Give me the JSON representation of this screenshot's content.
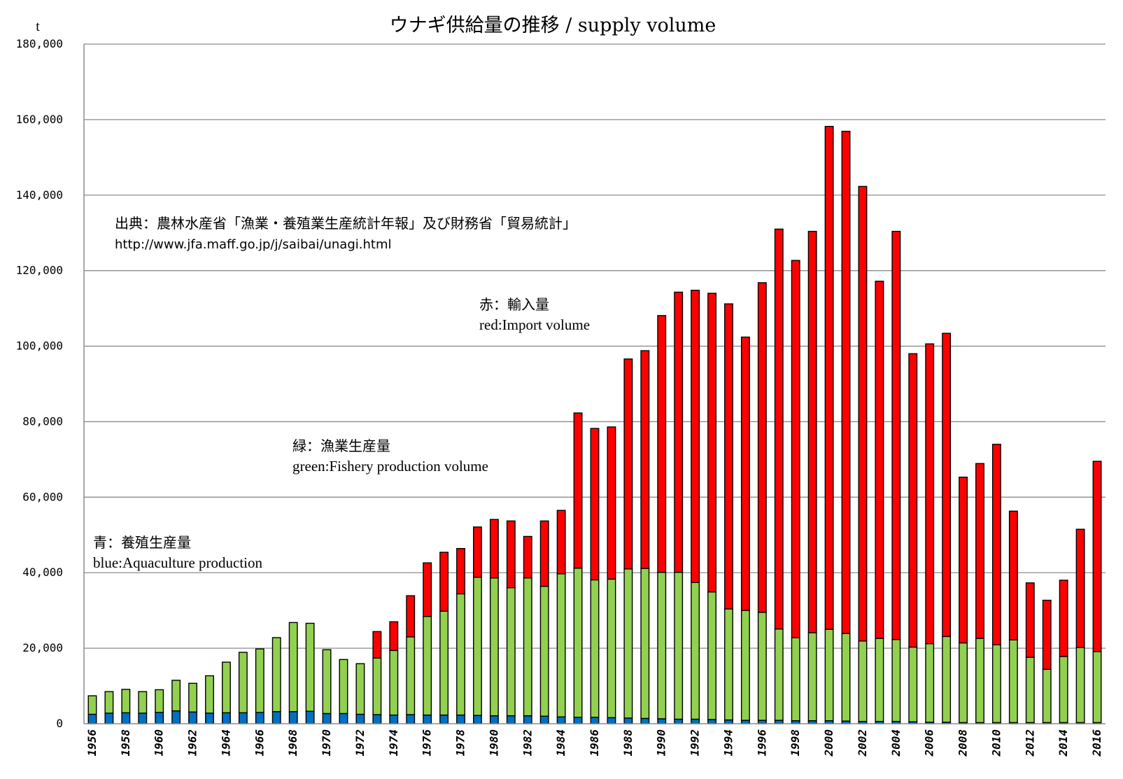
{
  "chart_data": {
    "type": "bar",
    "stacked": true,
    "title": "ウナギ供給量の推移 / supply volume",
    "ylabel": "t",
    "ylim": [
      0,
      180000
    ],
    "yticks": [
      0,
      20000,
      40000,
      60000,
      80000,
      100000,
      120000,
      140000,
      160000,
      180000
    ],
    "ytick_labels": [
      "0",
      "20,000",
      "40,000",
      "60,000",
      "80,000",
      "100,000",
      "120,000",
      "140,000",
      "160,000",
      "180,000"
    ],
    "grid": true,
    "categories": [
      "1956",
      "1957",
      "1958",
      "1959",
      "1960",
      "1961",
      "1962",
      "1963",
      "1964",
      "1965",
      "1966",
      "1967",
      "1968",
      "1969",
      "1970",
      "1971",
      "1972",
      "1973",
      "1974",
      "1975",
      "1976",
      "1977",
      "1978",
      "1979",
      "1980",
      "1981",
      "1982",
      "1983",
      "1984",
      "1985",
      "1986",
      "1987",
      "1988",
      "1989",
      "1990",
      "1991",
      "1992",
      "1993",
      "1994",
      "1995",
      "1996",
      "1997",
      "1998",
      "1999",
      "2000",
      "2001",
      "2002",
      "2003",
      "2004",
      "2005",
      "2006",
      "2007",
      "2008",
      "2009",
      "2010",
      "2011",
      "2012",
      "2013",
      "2014",
      "2015",
      "2016"
    ],
    "xtick_labels": [
      "1956",
      "1958",
      "1960",
      "1962",
      "1964",
      "1966",
      "1968",
      "1970",
      "1972",
      "1974",
      "1976",
      "1978",
      "1980",
      "1982",
      "1984",
      "1986",
      "1988",
      "1990",
      "1992",
      "1994",
      "1996",
      "1998",
      "2000",
      "2002",
      "2004",
      "2006",
      "2008",
      "2010",
      "2012",
      "2014",
      "2016"
    ],
    "series": [
      {
        "color": "#0070C0",
        "values": [
          2500,
          2800,
          2900,
          2800,
          3000,
          3400,
          3100,
          2800,
          2900,
          2900,
          3000,
          3200,
          3200,
          3300,
          2700,
          2700,
          2500,
          2400,
          2300,
          2400,
          2300,
          2300,
          2300,
          2200,
          2100,
          2100,
          2100,
          2000,
          1800,
          1700,
          1700,
          1600,
          1500,
          1400,
          1300,
          1200,
          1200,
          1100,
          1000,
          900,
          900,
          900,
          800,
          800,
          800,
          700,
          600,
          600,
          600,
          500,
          400,
          400,
          300,
          300,
          300,
          300,
          300,
          300,
          300,
          300,
          300
        ]
      },
      {
        "color": "#92D050",
        "values": [
          4900,
          5700,
          6200,
          5700,
          6000,
          8100,
          7600,
          9900,
          13400,
          16000,
          16800,
          19600,
          23600,
          23300,
          16900,
          14300,
          13400,
          15000,
          17100,
          20600,
          26100,
          27500,
          32100,
          36600,
          36500,
          33900,
          36500,
          34400,
          37900,
          39500,
          36400,
          36700,
          39500,
          39700,
          38800,
          38900,
          36200,
          33800,
          29400,
          29100,
          28600,
          24200,
          22000,
          23300,
          24200,
          23200,
          21300,
          22000,
          21700,
          19800,
          20800,
          22700,
          21100,
          22300,
          20600,
          21900,
          17300,
          14100,
          17500,
          19900,
          18800
        ]
      },
      {
        "color": "#FF0000",
        "values": [
          0,
          0,
          0,
          0,
          0,
          0,
          0,
          0,
          0,
          0,
          0,
          0,
          0,
          0,
          0,
          0,
          0,
          7000,
          7600,
          10900,
          14200,
          15600,
          12000,
          13300,
          15500,
          17700,
          11000,
          17300,
          16800,
          41100,
          40100,
          40300,
          55600,
          57700,
          68000,
          74200,
          77400,
          79100,
          80800,
          72400,
          87300,
          105900,
          99900,
          106300,
          133200,
          133000,
          120400,
          94600,
          108100,
          77700,
          79400,
          80300,
          43900,
          46300,
          53100,
          34100,
          19700,
          18300,
          20200,
          31300,
          50400
        ]
      }
    ],
    "annotations": [
      {
        "lines": [
          "出典：農林水産省「漁業・養殖業生産統計年報」及び財務省「貿易統計」",
          "http://www.jfa.maff.go.jp/j/saibai/unagi.html"
        ]
      },
      {
        "lines": [
          "赤：輸入量",
          "red:Import volume"
        ]
      },
      {
        "lines": [
          "緑：漁業生産量",
          "green:Fishery production volume"
        ]
      },
      {
        "lines": [
          "青：養殖生産量",
          "blue:Aquaculture production"
        ]
      }
    ]
  }
}
